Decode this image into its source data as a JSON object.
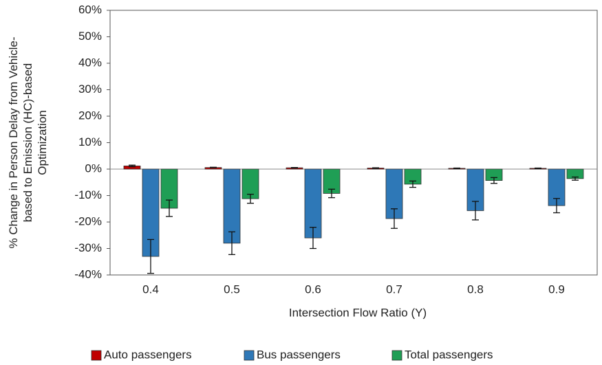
{
  "chart_data": {
    "type": "bar",
    "categories": [
      "0.4",
      "0.5",
      "0.6",
      "0.7",
      "0.8",
      "0.9"
    ],
    "series": [
      {
        "name": "Auto passengers",
        "color": "#c00000",
        "values": [
          1.2,
          0.6,
          0.5,
          0.4,
          0.3,
          0.3
        ],
        "errors": [
          0.3,
          0.1,
          0.1,
          0.1,
          0.1,
          0.1
        ]
      },
      {
        "name": "Bus passengers",
        "color": "#2e78b7",
        "values": [
          -33,
          -28,
          -26,
          -18.7,
          -15.7,
          -13.8
        ],
        "errors": [
          6.4,
          4.3,
          4,
          3.7,
          3.5,
          2.7
        ]
      },
      {
        "name": "Total passengers",
        "color": "#1f9e55",
        "values": [
          -14.8,
          -11.2,
          -9.2,
          -5.7,
          -4.3,
          -3.6
        ],
        "errors": [
          3.1,
          1.7,
          1.6,
          1.2,
          1.1,
          0.6
        ]
      }
    ],
    "x_label": "Intersection Flow Ratio (Y)",
    "y_label": [
      "% Change in Person Delay from Vehicle-",
      "based to Emission (HC)-based",
      "Optimization"
    ],
    "ylim": [
      -40,
      60
    ],
    "yticks": [
      {
        "value": -40,
        "label": "-40%"
      },
      {
        "value": -30,
        "label": "-30%"
      },
      {
        "value": -20,
        "label": "-20%"
      },
      {
        "value": -10,
        "label": "-10%"
      },
      {
        "value": 0,
        "label": "0%"
      },
      {
        "value": 10,
        "label": "10%"
      },
      {
        "value": 20,
        "label": "20%"
      },
      {
        "value": 30,
        "label": "30%"
      },
      {
        "value": 40,
        "label": "40%"
      },
      {
        "value": 50,
        "label": "50%"
      },
      {
        "value": 60,
        "label": "60%"
      }
    ],
    "legend": "bottom"
  }
}
